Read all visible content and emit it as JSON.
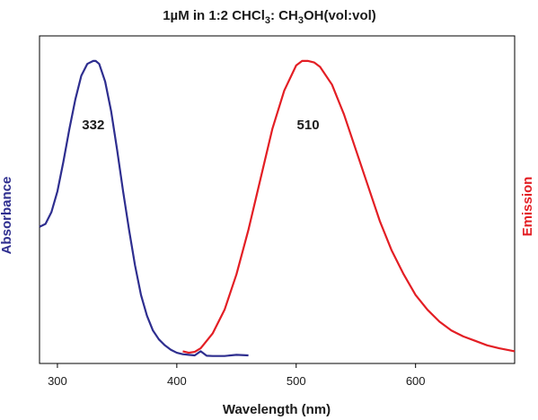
{
  "chart_data": {
    "type": "line",
    "title": {
      "prefix": "1µM in 1:2 CHCl",
      "sub1": "3",
      "mid": ": CH",
      "sub2": "3",
      "suffix": "OH(vol:vol)"
    },
    "xlabel": "Wavelength (nm)",
    "ylabel_left": "Absorbance",
    "ylabel_right": "Emission",
    "xlim": [
      285,
      683
    ],
    "ylim": [
      0,
      1.03
    ],
    "xticks": [
      300,
      400,
      500,
      600
    ],
    "grid": false,
    "colors": {
      "absorbance": "#2e2e8f",
      "emission": "#e31e24",
      "axis": "#000000"
    },
    "peak_labels": [
      {
        "text": "332",
        "x": 330,
        "y": 0.77
      },
      {
        "text": "510",
        "x": 510,
        "y": 0.77
      }
    ],
    "series": [
      {
        "name": "Absorbance",
        "color": "#2e2e8f",
        "x": [
          285,
          290,
          295,
          300,
          305,
          310,
          315,
          320,
          325,
          330,
          332,
          335,
          340,
          345,
          350,
          355,
          360,
          365,
          370,
          375,
          380,
          385,
          390,
          395,
          400,
          405,
          410,
          415,
          420,
          425,
          430,
          440,
          450,
          460
        ],
        "y": [
          0.44,
          0.45,
          0.49,
          0.56,
          0.66,
          0.77,
          0.87,
          0.95,
          0.99,
          1.0,
          1.0,
          0.99,
          0.93,
          0.83,
          0.7,
          0.56,
          0.43,
          0.31,
          0.21,
          0.14,
          0.09,
          0.06,
          0.04,
          0.025,
          0.015,
          0.01,
          0.008,
          0.006,
          0.02,
          0.005,
          0.004,
          0.004,
          0.008,
          0.006
        ]
      },
      {
        "name": "Emission",
        "color": "#e31e24",
        "x": [
          405,
          410,
          415,
          420,
          430,
          440,
          450,
          460,
          470,
          480,
          490,
          500,
          505,
          510,
          515,
          520,
          530,
          540,
          550,
          560,
          570,
          580,
          590,
          600,
          610,
          620,
          630,
          640,
          650,
          660,
          670,
          683
        ],
        "y": [
          0.02,
          0.015,
          0.018,
          0.03,
          0.08,
          0.16,
          0.28,
          0.43,
          0.6,
          0.77,
          0.9,
          0.985,
          1.0,
          1.0,
          0.995,
          0.98,
          0.92,
          0.82,
          0.7,
          0.58,
          0.46,
          0.36,
          0.28,
          0.21,
          0.16,
          0.12,
          0.09,
          0.07,
          0.055,
          0.04,
          0.03,
          0.02
        ]
      }
    ]
  }
}
